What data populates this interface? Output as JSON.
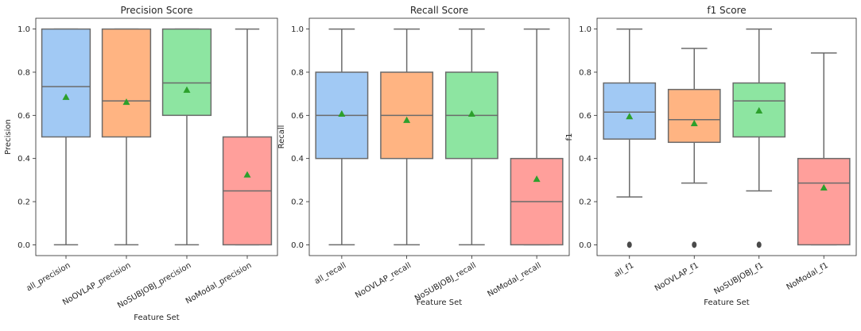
{
  "chart_data": [
    {
      "type": "box",
      "title": "Precision Score",
      "xlabel": "Feature Set",
      "ylabel": "Precision",
      "ylim": [
        -0.05,
        1.05
      ],
      "yticks": [
        "0.0",
        "0.2",
        "0.4",
        "0.6",
        "0.8",
        "1.0"
      ],
      "grid": false,
      "categories": [
        "all_precision",
        "NoOVLAP_precision",
        "NoSUBJOBJ_precision",
        "NoModal_precision"
      ],
      "boxes": [
        {
          "whislo": 0.0,
          "q1": 0.5,
          "median": 0.733,
          "q3": 1.0,
          "whishi": 1.0,
          "mean": 0.685,
          "fliers": []
        },
        {
          "whislo": 0.0,
          "q1": 0.5,
          "median": 0.667,
          "q3": 1.0,
          "whishi": 1.0,
          "mean": 0.662,
          "fliers": []
        },
        {
          "whislo": 0.0,
          "q1": 0.6,
          "median": 0.75,
          "q3": 1.0,
          "whishi": 1.0,
          "mean": 0.718,
          "fliers": []
        },
        {
          "whislo": 0.0,
          "q1": 0.0,
          "median": 0.25,
          "q3": 0.5,
          "whishi": 1.0,
          "mean": 0.325,
          "fliers": []
        }
      ]
    },
    {
      "type": "box",
      "title": "Recall Score",
      "xlabel": "Feature Set",
      "ylabel": "Recall",
      "ylim": [
        -0.05,
        1.05
      ],
      "yticks": [
        "0.0",
        "0.2",
        "0.4",
        "0.6",
        "0.8",
        "1.0"
      ],
      "grid": false,
      "categories": [
        "all_recall",
        "NoOVLAP_recall",
        "NoSUBJOBJ_recall",
        "NoModal_recall"
      ],
      "boxes": [
        {
          "whislo": 0.0,
          "q1": 0.4,
          "median": 0.6,
          "q3": 0.8,
          "whishi": 1.0,
          "mean": 0.607,
          "fliers": []
        },
        {
          "whislo": 0.0,
          "q1": 0.4,
          "median": 0.6,
          "q3": 0.8,
          "whishi": 1.0,
          "mean": 0.578,
          "fliers": []
        },
        {
          "whislo": 0.0,
          "q1": 0.4,
          "median": 0.6,
          "q3": 0.8,
          "whishi": 1.0,
          "mean": 0.607,
          "fliers": []
        },
        {
          "whislo": 0.0,
          "q1": 0.0,
          "median": 0.2,
          "q3": 0.4,
          "whishi": 1.0,
          "mean": 0.305,
          "fliers": []
        }
      ]
    },
    {
      "type": "box",
      "title": "f1 Score",
      "xlabel": "Feature Set",
      "ylabel": "f1",
      "ylim": [
        -0.05,
        1.05
      ],
      "yticks": [
        "0.0",
        "0.2",
        "0.4",
        "0.6",
        "0.8",
        "1.0"
      ],
      "grid": false,
      "categories": [
        "all_f1",
        "NoOVLAP_f1",
        "NoSUBJOBJ_f1",
        "NoModal_f1"
      ],
      "boxes": [
        {
          "whislo": 0.222,
          "q1": 0.49,
          "median": 0.615,
          "q3": 0.75,
          "whishi": 1.0,
          "mean": 0.595,
          "fliers": [
            0.0
          ]
        },
        {
          "whislo": 0.286,
          "q1": 0.475,
          "median": 0.58,
          "q3": 0.72,
          "whishi": 0.91,
          "mean": 0.563,
          "fliers": [
            0.0
          ]
        },
        {
          "whislo": 0.25,
          "q1": 0.5,
          "median": 0.667,
          "q3": 0.75,
          "whishi": 1.0,
          "mean": 0.622,
          "fliers": [
            0.0
          ]
        },
        {
          "whislo": 0.0,
          "q1": 0.0,
          "median": 0.286,
          "q3": 0.4,
          "whishi": 0.889,
          "mean": 0.265,
          "fliers": []
        }
      ]
    }
  ],
  "colors": {
    "boxes": [
      "#a1c9f4",
      "#ffb482",
      "#8de5a1",
      "#ff9f9b"
    ],
    "line": "#6b6b6b",
    "mean_marker": "#2ca02c",
    "axis": "#262626"
  }
}
